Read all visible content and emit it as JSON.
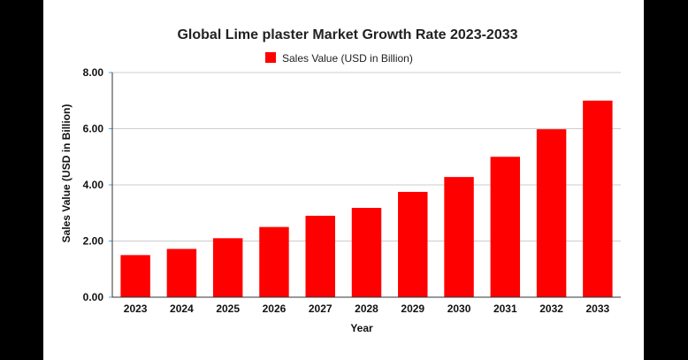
{
  "chart_data": {
    "type": "bar",
    "title": "Global Lime plaster Market Growth Rate 2023-2033",
    "xlabel": "Year",
    "ylabel": "Sales Value (USD in Billion)",
    "categories": [
      "2023",
      "2024",
      "2025",
      "2026",
      "2027",
      "2028",
      "2029",
      "2030",
      "2031",
      "2032",
      "2033"
    ],
    "series": [
      {
        "name": "Sales Value (USD in Billion)",
        "values": [
          1.5,
          1.72,
          2.1,
          2.5,
          2.9,
          3.18,
          3.75,
          4.28,
          5.0,
          5.98,
          7.0
        ]
      }
    ],
    "ylim": [
      0,
      8
    ],
    "yticks": [
      "0.00",
      "2.00",
      "4.00",
      "6.00",
      "8.00"
    ],
    "grid": true,
    "legend_position": "top",
    "colors": {
      "bar": "#ff0000",
      "grid": "#cccccc",
      "axis": "#333333"
    }
  }
}
